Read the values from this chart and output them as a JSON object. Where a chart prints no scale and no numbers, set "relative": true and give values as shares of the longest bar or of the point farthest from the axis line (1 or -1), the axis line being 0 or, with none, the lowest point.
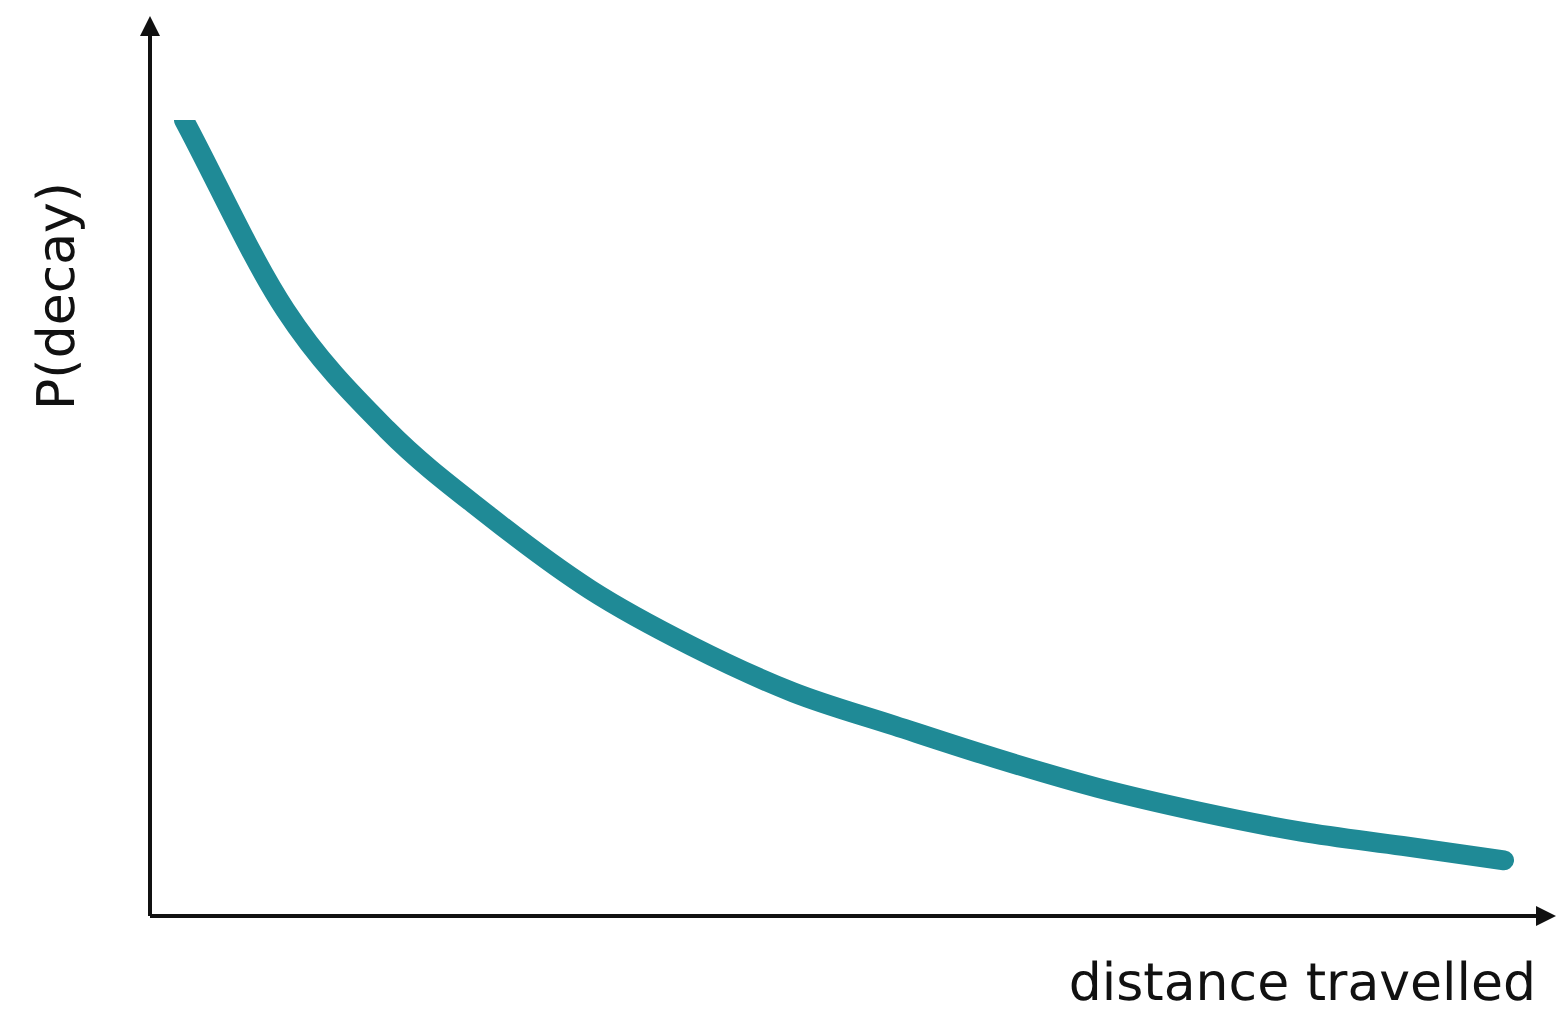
{
  "chart_data": {
    "type": "line",
    "relative": true,
    "xlabel": "distance travelled",
    "ylabel": "P(decay)",
    "categories": [
      null,
      null,
      null,
      null,
      null,
      null,
      null,
      null,
      null,
      null,
      null,
      null,
      null,
      null
    ],
    "series": [
      {
        "color": "#1f8a96",
        "values": [
          1.0,
          0.761,
          0.611,
          0.503,
          0.41,
          0.339,
          0.281,
          0.239,
          0.198,
          0.161,
          0.131,
          0.106,
          0.088,
          0.07
        ]
      }
    ],
    "legend": false,
    "marker": "none",
    "line_style": "solid"
  }
}
